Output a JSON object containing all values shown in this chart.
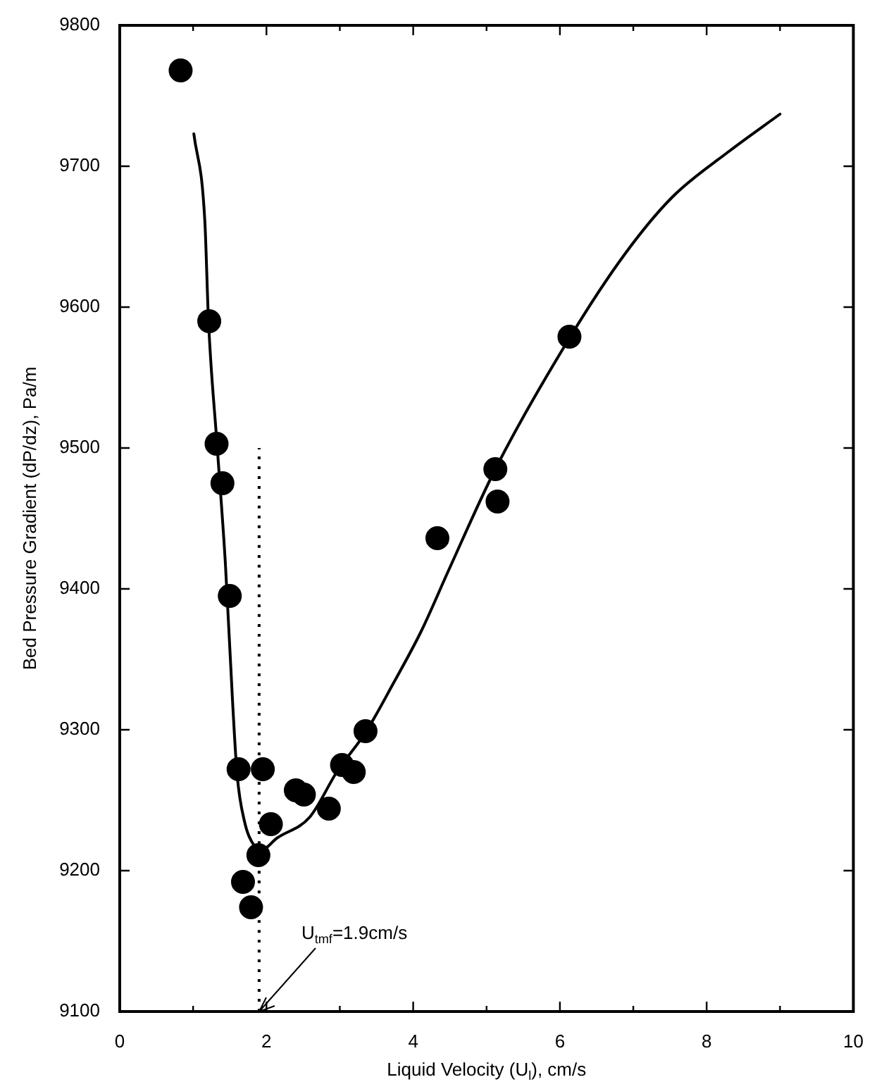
{
  "chart_data": {
    "type": "scatter",
    "xlabel": "Liquid Velocity (U$_{l}$), cm/s",
    "ylabel": "Bed Pressure Gradient (dP/dz), Pa/m",
    "xlim": [
      0,
      10
    ],
    "ylim": [
      9100,
      9800
    ],
    "xticks": [
      0,
      {
        "value": 1,
        "label": null
      },
      2,
      {
        "value": 3,
        "label": null
      },
      4,
      {
        "value": 5,
        "label": null
      },
      6,
      {
        "value": 7,
        "label": null
      },
      8,
      {
        "value": 9,
        "label": null
      },
      10
    ],
    "yticks": [
      9100,
      9200,
      9300,
      9400,
      9500,
      9600,
      9700,
      9800
    ],
    "grid": false,
    "legend": false,
    "annotations": [
      {
        "text": "U$_{tmf}$=1.9cm/s",
        "x": 1.9,
        "y": 9100
      }
    ],
    "series": [
      {
        "color": "#000000",
        "marker": "circle",
        "x": [
          0.83,
          1.22,
          1.32,
          1.4,
          1.5,
          1.62,
          1.95,
          2.4,
          2.51,
          2.85,
          2.06,
          1.89,
          1.68,
          1.79,
          3.03,
          3.19,
          3.35,
          4.33,
          5.12,
          5.15,
          6.13
        ],
        "values": [
          9768,
          9590,
          9503,
          9475,
          9395,
          9272,
          9272,
          9257,
          9254,
          9244,
          9233,
          9211,
          9192,
          9174,
          9275,
          9270,
          9299,
          9436,
          9485,
          9462,
          9579
        ]
      },
      {
        "type": "line",
        "color": "#000000",
        "marker": "none",
        "line_style": "solid",
        "x": [
          1.01,
          1.16,
          1.21,
          1.33,
          1.44,
          1.54,
          1.6,
          1.7,
          1.83,
          1.94,
          2.14,
          2.59,
          2.97,
          3.35,
          3.73,
          4.11,
          4.49,
          5.12,
          6.13,
          6.89,
          7.53,
          8.29,
          9.0
        ],
        "values": [
          9723,
          9661,
          9590,
          9500,
          9418,
          9318,
          9268,
          9235,
          9218,
          9215,
          9223,
          9238,
          9271,
          9298,
          9333,
          9370,
          9414,
          9485,
          9578,
          9638,
          9678,
          9710,
          9737
        ]
      },
      {
        "type": "line",
        "color": "#000000",
        "marker": "none",
        "line_style": "dotted",
        "x": [
          1.9,
          1.9
        ],
        "values": [
          9100,
          9500
        ]
      }
    ]
  }
}
